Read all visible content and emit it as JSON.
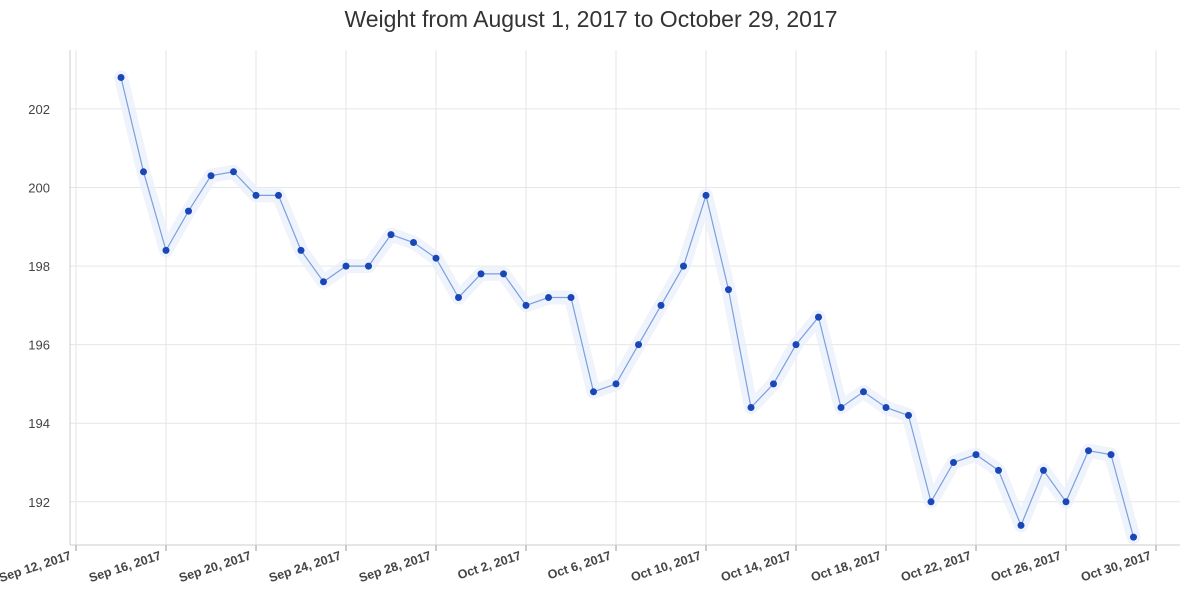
{
  "chart_data": {
    "type": "line",
    "title": "Weight from August 1, 2017 to October 29, 2017",
    "xlabel": "",
    "ylabel": "",
    "x_ticks": [
      "2017-09-12",
      "2017-09-16",
      "2017-09-20",
      "2017-09-24",
      "2017-09-28",
      "2017-10-02",
      "2017-10-06",
      "2017-10-10",
      "2017-10-14",
      "2017-10-18",
      "2017-10-22",
      "2017-10-26",
      "2017-10-30"
    ],
    "x_tick_labels": [
      "Sep 12, 2017",
      "Sep 16, 2017",
      "Sep 20, 2017",
      "Sep 24, 2017",
      "Sep 28, 2017",
      "Oct 2, 2017",
      "Oct 6, 2017",
      "Oct 10, 2017",
      "Oct 14, 2017",
      "Oct 18, 2017",
      "Oct 22, 2017",
      "Oct 26, 2017",
      "Oct 30, 2017"
    ],
    "y_ticks": [
      192,
      194,
      196,
      198,
      200,
      202
    ],
    "y_tick_labels": [
      "192",
      "194",
      "196",
      "198",
      "200",
      "202"
    ],
    "xlim": [
      "2017-09-12",
      "2017-10-30"
    ],
    "ylim": [
      190.9,
      203.5
    ],
    "grid": true,
    "legend": "none",
    "colors": {
      "line": "#7b9fe0",
      "point": "#1a47b8",
      "band": "#e8eefb"
    },
    "series": [
      {
        "x": [
          "2017-09-14",
          "2017-09-15",
          "2017-09-16",
          "2017-09-17",
          "2017-09-18",
          "2017-09-19",
          "2017-09-20",
          "2017-09-21",
          "2017-09-22",
          "2017-09-23",
          "2017-09-24",
          "2017-09-25",
          "2017-09-26",
          "2017-09-27",
          "2017-09-28",
          "2017-09-29",
          "2017-09-30",
          "2017-10-01",
          "2017-10-02",
          "2017-10-03",
          "2017-10-04",
          "2017-10-05",
          "2017-10-06",
          "2017-10-07",
          "2017-10-08",
          "2017-10-09",
          "2017-10-10",
          "2017-10-11",
          "2017-10-12",
          "2017-10-13",
          "2017-10-14",
          "2017-10-15",
          "2017-10-16",
          "2017-10-17",
          "2017-10-18",
          "2017-10-19",
          "2017-10-20",
          "2017-10-21",
          "2017-10-22",
          "2017-10-23",
          "2017-10-24",
          "2017-10-25",
          "2017-10-26",
          "2017-10-27",
          "2017-10-28",
          "2017-10-29"
        ],
        "values": [
          202.8,
          200.4,
          198.4,
          199.4,
          200.3,
          200.4,
          199.8,
          199.8,
          198.4,
          197.6,
          198.0,
          198.0,
          198.8,
          198.6,
          198.2,
          197.2,
          197.8,
          197.8,
          197.0,
          197.2,
          197.2,
          194.8,
          195.0,
          196.0,
          197.0,
          198.0,
          199.8,
          197.4,
          194.4,
          195.0,
          196.0,
          196.7,
          194.4,
          194.8,
          194.4,
          194.2,
          192.0,
          193.0,
          193.2,
          192.8,
          191.4,
          192.8,
          192.0,
          193.3,
          193.2,
          191.1
        ]
      }
    ]
  }
}
